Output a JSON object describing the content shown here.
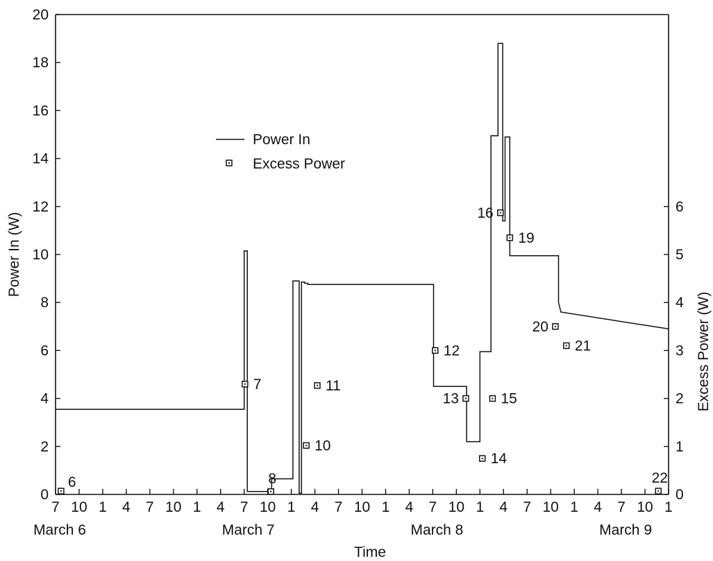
{
  "chart_data": {
    "type": "line",
    "xlabel": "Time",
    "ylabel": "Power In (W)",
    "y2label": "Excess Power (W)",
    "ylim": [
      0,
      20
    ],
    "y2lim": [
      0,
      10
    ],
    "y_ticks": [
      "0",
      "2",
      "4",
      "6",
      "8",
      "10",
      "12",
      "14",
      "16",
      "18",
      "20"
    ],
    "y2_ticks": [
      "0",
      "1",
      "2",
      "3",
      "4",
      "5",
      "6"
    ],
    "x_unit": "hours from 7 on March 6",
    "xlim": [
      0,
      78
    ],
    "x_tick_labels": [
      "7",
      "10",
      "1",
      "4",
      "7",
      "10",
      "1",
      "4",
      "7",
      "10",
      "1",
      "4",
      "7",
      "10",
      "1",
      "4",
      "7",
      "10",
      "1",
      "4",
      "7",
      "10",
      "1",
      "4",
      "7",
      "10",
      "1"
    ],
    "date_labels": [
      {
        "text": "March 6",
        "at": 0
      },
      {
        "text": "March 7",
        "at": 24
      },
      {
        "text": "March 8",
        "at": 48
      },
      {
        "text": "March 9",
        "at": 72
      }
    ],
    "legend": {
      "placement": "upper-left",
      "line_label": "Power In",
      "marker_label": "Excess Power"
    },
    "series": [
      {
        "name": "Power In",
        "kind": "step-line",
        "x": [
          0,
          24,
          24,
          24.4,
          24.4,
          24.8,
          24.8,
          27.5,
          27.5,
          30.2,
          30.2,
          31.0,
          31.0,
          31.3,
          31.3,
          31.7,
          31.7,
          32.1,
          32.1,
          48.1,
          48.1,
          52.3,
          52.3,
          54.0,
          54.0,
          55.4,
          55.4,
          56.3,
          56.3,
          56.9,
          56.9,
          57.2,
          57.2,
          57.8,
          57.8,
          58.1,
          58.1,
          58.5,
          58.5,
          64.0,
          64.0,
          64.3,
          78
        ],
        "y": [
          3.55,
          3.55,
          10.15,
          10.15,
          0.12,
          0.12,
          0.12,
          0.12,
          0.65,
          0.65,
          8.9,
          8.9,
          0.05,
          0.05,
          8.85,
          8.85,
          8.8,
          8.8,
          8.75,
          8.75,
          4.5,
          4.5,
          2.2,
          2.2,
          5.95,
          5.95,
          14.95,
          14.95,
          18.8,
          18.8,
          11.4,
          11.4,
          14.9,
          14.9,
          9.95,
          9.95,
          9.95,
          9.95,
          9.95,
          9.95,
          8.0,
          7.6,
          6.9
        ]
      },
      {
        "name": "Excess Power",
        "kind": "markers",
        "points": [
          {
            "label": "6",
            "x": 0.7,
            "y": 0.07,
            "label_pos": "ne"
          },
          {
            "label": "7",
            "x": 24.1,
            "y": 2.3,
            "label_pos": "e"
          },
          {
            "label": "8",
            "x": 27.4,
            "y": 0.06,
            "label_pos": "n"
          },
          {
            "label": "10",
            "x": 31.9,
            "y": 1.02,
            "label_pos": "e"
          },
          {
            "label": "11",
            "x": 33.3,
            "y": 2.27,
            "label_pos": "e"
          },
          {
            "label": "12",
            "x": 48.3,
            "y": 3.0,
            "label_pos": "e"
          },
          {
            "label": "13",
            "x": 52.2,
            "y": 2.0,
            "label_pos": "w"
          },
          {
            "label": "14",
            "x": 54.3,
            "y": 0.75,
            "label_pos": "e"
          },
          {
            "label": "15",
            "x": 55.6,
            "y": 2.0,
            "label_pos": "e"
          },
          {
            "label": "16",
            "x": 56.6,
            "y": 5.87,
            "label_pos": "w"
          },
          {
            "label": "19",
            "x": 57.8,
            "y": 5.35,
            "label_pos": "e"
          },
          {
            "label": "20",
            "x": 63.6,
            "y": 3.5,
            "label_pos": "w"
          },
          {
            "label": "21",
            "x": 65.0,
            "y": 3.1,
            "label_pos": "e"
          },
          {
            "label": "22",
            "x": 76.7,
            "y": 0.07,
            "label_pos": "n"
          }
        ]
      }
    ]
  }
}
